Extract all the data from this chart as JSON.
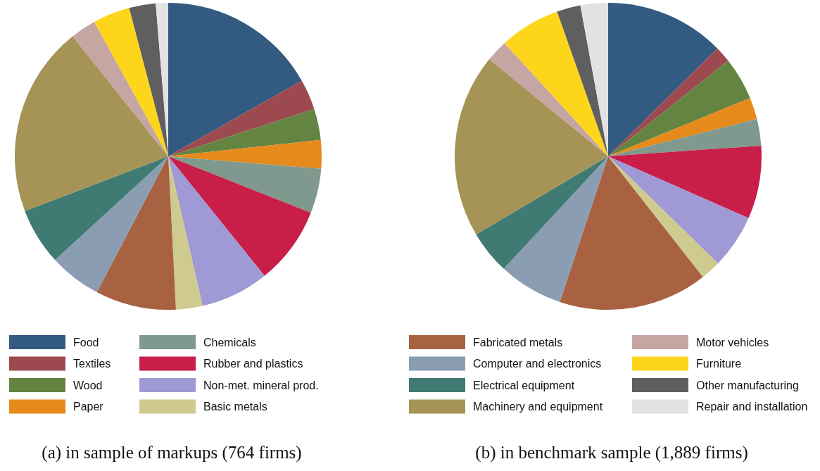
{
  "chart_data": {
    "type": "pie",
    "legend": "bottom",
    "categories": [
      "Food",
      "Textiles",
      "Wood",
      "Paper",
      "Chemicals",
      "Rubber and plastics",
      "Non-met. mineral prod.",
      "Basic metals",
      "Fabricated metals",
      "Computer and electronics",
      "Electrical equipment",
      "Machinery and equipment",
      "Motor vehicles",
      "Furniture",
      "Other manufacturing",
      "Repair and installation"
    ],
    "colors": [
      "#335a80",
      "#9c4a50",
      "#648442",
      "#e68a1b",
      "#7f998e",
      "#c81e48",
      "#9f99d6",
      "#cfca8d",
      "#a86141",
      "#8a9db3",
      "#3f7b72",
      "#a69457",
      "#c6a6a3",
      "#fdd61c",
      "#5f5f5f",
      "#e2e2e2"
    ],
    "series": [
      {
        "name": "(a) in sample of markups (764 firms)",
        "values": [
          16.8,
          3.2,
          3.3,
          3.0,
          4.7,
          8.2,
          7.2,
          2.8,
          8.5,
          5.5,
          6.0,
          20.1,
          2.7,
          3.9,
          2.8,
          1.3
        ]
      },
      {
        "name": "(b) in benchmark sample (1,889 firms)",
        "values": [
          12.6,
          1.7,
          4.5,
          2.3,
          2.8,
          7.7,
          5.7,
          2.1,
          15.7,
          6.8,
          4.6,
          19.4,
          2.3,
          6.4,
          2.5,
          2.9
        ]
      }
    ]
  }
}
